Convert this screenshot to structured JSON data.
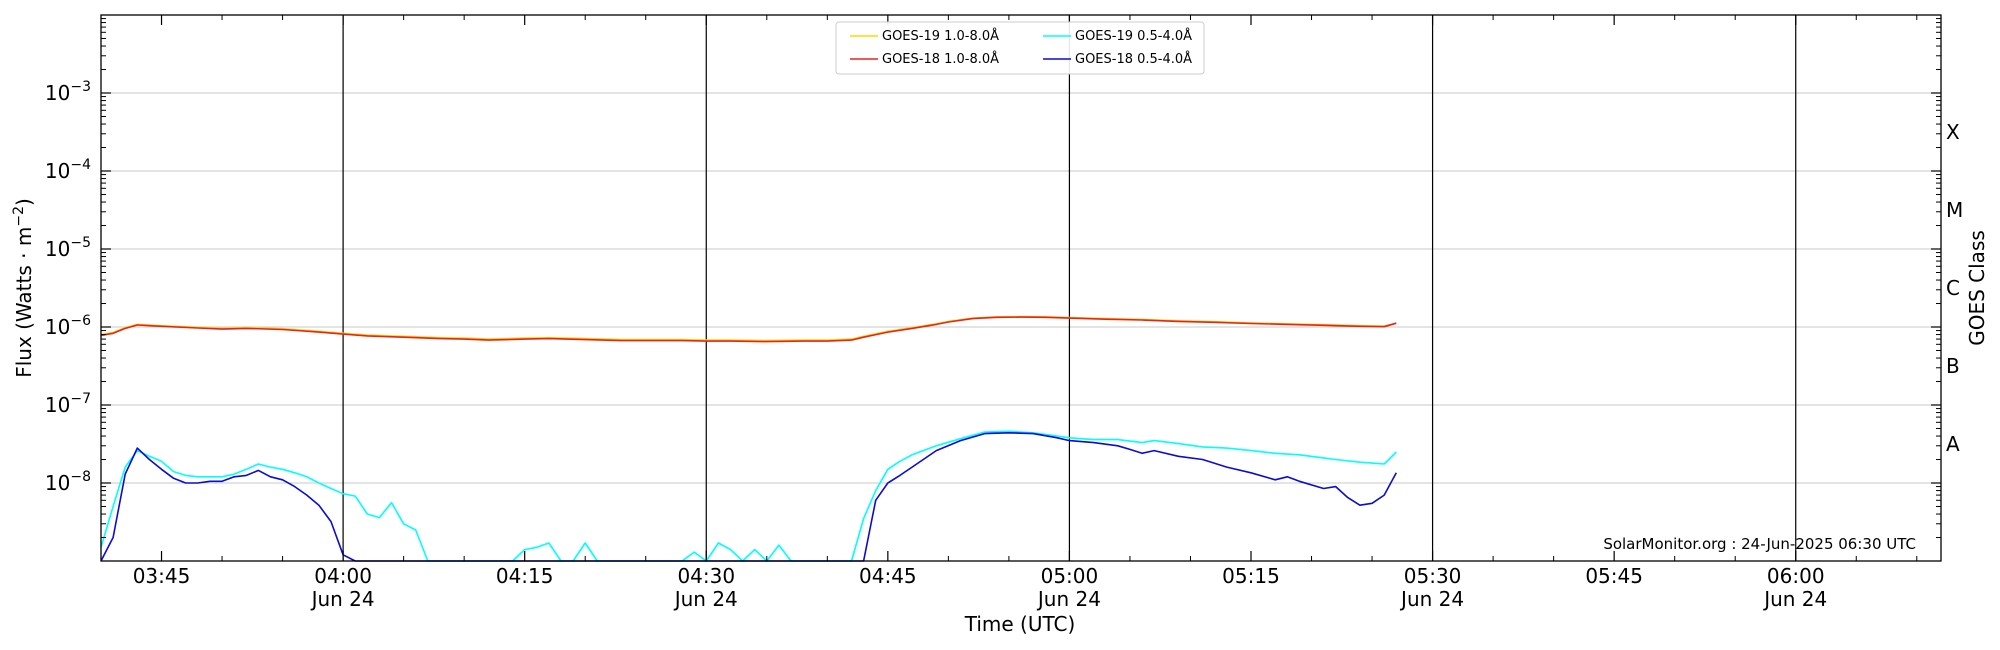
{
  "chart_data": {
    "type": "line",
    "xlabel": "Time (UTC)",
    "ylabel": "Flux (Watts · m",
    "ylabel_sup": "−2",
    "ylabel_end": ")",
    "y2label": "GOES Class",
    "y_scale": "log",
    "ylim": [
      1e-09,
      0.01
    ],
    "xlim": [
      "03:40",
      "06:12"
    ],
    "grid": "horizontal at decades; vertical lines at half-hour marks",
    "legend_position": "top-center",
    "credit": "SolarMonitor.org : 24-Jun-2025 06:30 UTC",
    "y_ticks": [
      {
        "value": 1e-08,
        "base": "10",
        "exp": "−8"
      },
      {
        "value": 1e-07,
        "base": "10",
        "exp": "−7"
      },
      {
        "value": 1e-06,
        "base": "10",
        "exp": "−6"
      },
      {
        "value": 1e-05,
        "base": "10",
        "exp": "−5"
      },
      {
        "value": 0.0001,
        "base": "10",
        "exp": "−4"
      },
      {
        "value": 0.001,
        "base": "10",
        "exp": "−3"
      }
    ],
    "x_ticks": [
      {
        "time": "03:45",
        "label": "03:45",
        "label2": ""
      },
      {
        "time": "04:00",
        "label": "04:00",
        "label2": "Jun 24"
      },
      {
        "time": "04:15",
        "label": "04:15",
        "label2": ""
      },
      {
        "time": "04:30",
        "label": "04:30",
        "label2": "Jun 24"
      },
      {
        "time": "04:45",
        "label": "04:45",
        "label2": ""
      },
      {
        "time": "05:00",
        "label": "05:00",
        "label2": "Jun 24"
      },
      {
        "time": "05:15",
        "label": "05:15",
        "label2": ""
      },
      {
        "time": "05:30",
        "label": "05:30",
        "label2": "Jun 24"
      },
      {
        "time": "05:45",
        "label": "05:45",
        "label2": ""
      },
      {
        "time": "06:00",
        "label": "06:00",
        "label2": "Jun 24"
      }
    ],
    "vlines": [
      "04:00",
      "04:30",
      "05:00",
      "05:30",
      "06:00"
    ],
    "goes_classes": [
      {
        "label": "A",
        "value": 3.16e-08
      },
      {
        "label": "B",
        "value": 3.16e-07
      },
      {
        "label": "C",
        "value": 3.16e-06
      },
      {
        "label": "M",
        "value": 3.16e-05
      },
      {
        "label": "X",
        "value": 0.000316
      }
    ],
    "series": [
      {
        "name": "GOES-19 1.0-8.0Å",
        "color": "#ffd700",
        "x": [
          "03:40",
          "03:41",
          "03:42",
          "03:43",
          "03:45",
          "03:48",
          "03:50",
          "03:52",
          "03:55",
          "03:58",
          "04:00",
          "04:02",
          "04:05",
          "04:08",
          "04:10",
          "04:12",
          "04:15",
          "04:17",
          "04:20",
          "04:23",
          "04:25",
          "04:28",
          "04:30",
          "04:32",
          "04:35",
          "04:38",
          "04:40",
          "04:42",
          "04:43",
          "04:45",
          "04:47",
          "04:49",
          "04:50",
          "04:52",
          "04:54",
          "04:56",
          "04:58",
          "05:00",
          "05:03",
          "05:06",
          "05:09",
          "05:12",
          "05:15",
          "05:18",
          "05:21",
          "05:24",
          "05:26",
          "05:27"
        ],
        "y": [
          8e-07,
          8.5e-07,
          9.8e-07,
          1.08e-06,
          1.04e-06,
          9.9e-07,
          9.6e-07,
          9.8e-07,
          9.5e-07,
          8.8e-07,
          8.3e-07,
          7.9e-07,
          7.6e-07,
          7.3e-07,
          7.2e-07,
          7e-07,
          7.2e-07,
          7.3e-07,
          7.1e-07,
          6.9e-07,
          6.9e-07,
          6.9e-07,
          6.8e-07,
          6.8e-07,
          6.7e-07,
          6.8e-07,
          6.8e-07,
          7e-07,
          7.6e-07,
          8.8e-07,
          9.8e-07,
          1.1e-06,
          1.18e-06,
          1.3e-06,
          1.35e-06,
          1.36e-06,
          1.35e-06,
          1.32e-06,
          1.28e-06,
          1.25e-06,
          1.2e-06,
          1.17e-06,
          1.13e-06,
          1.1e-06,
          1.07e-06,
          1.04e-06,
          1.03e-06,
          1.12e-06
        ]
      },
      {
        "name": "GOES-18 1.0-8.0Å",
        "color": "#e8231d",
        "x": [
          "03:40",
          "03:41",
          "03:42",
          "03:43",
          "03:45",
          "03:48",
          "03:50",
          "03:52",
          "03:55",
          "03:58",
          "04:00",
          "04:02",
          "04:05",
          "04:08",
          "04:10",
          "04:12",
          "04:15",
          "04:17",
          "04:20",
          "04:23",
          "04:25",
          "04:28",
          "04:30",
          "04:32",
          "04:35",
          "04:38",
          "04:40",
          "04:42",
          "04:43",
          "04:45",
          "04:47",
          "04:49",
          "04:50",
          "04:52",
          "04:54",
          "04:56",
          "04:58",
          "05:00",
          "05:03",
          "05:06",
          "05:09",
          "05:12",
          "05:15",
          "05:18",
          "05:21",
          "05:24",
          "05:26",
          "05:27"
        ],
        "y": [
          7.8e-07,
          8.3e-07,
          9.6e-07,
          1.06e-06,
          1.02e-06,
          9.7e-07,
          9.4e-07,
          9.6e-07,
          9.3e-07,
          8.6e-07,
          8.1e-07,
          7.7e-07,
          7.4e-07,
          7.1e-07,
          7e-07,
          6.8e-07,
          7e-07,
          7.1e-07,
          6.9e-07,
          6.7e-07,
          6.7e-07,
          6.7e-07,
          6.6e-07,
          6.6e-07,
          6.5e-07,
          6.6e-07,
          6.6e-07,
          6.8e-07,
          7.4e-07,
          8.6e-07,
          9.6e-07,
          1.08e-06,
          1.16e-06,
          1.28e-06,
          1.33e-06,
          1.34e-06,
          1.33e-06,
          1.3e-06,
          1.26e-06,
          1.23e-06,
          1.18e-06,
          1.15e-06,
          1.11e-06,
          1.08e-06,
          1.05e-06,
          1.02e-06,
          1.01e-06,
          1.12e-06
        ]
      },
      {
        "name": "GOES-19 0.5-4.0Å",
        "color": "#00ffff",
        "x": [
          "03:40",
          "03:41",
          "03:42",
          "03:43",
          "03:44",
          "03:45",
          "03:46",
          "03:47",
          "03:48",
          "03:50",
          "03:51",
          "03:52",
          "03:53",
          "03:54",
          "03:55",
          "03:56",
          "03:57",
          "03:58",
          "03:59",
          "04:00",
          "04:01",
          "04:02",
          "04:03",
          "04:04",
          "04:05",
          "04:06",
          "04:07",
          "04:08",
          "04:14",
          "04:15",
          "04:16",
          "04:17",
          "04:18",
          "04:19",
          "04:20",
          "04:21",
          "04:28",
          "04:29",
          "04:30",
          "04:31",
          "04:32",
          "04:33",
          "04:34",
          "04:35",
          "04:36",
          "04:37",
          "04:38",
          "04:42",
          "04:43",
          "04:44",
          "04:45",
          "04:46",
          "04:47",
          "04:49",
          "04:51",
          "04:53",
          "04:55",
          "04:57",
          "04:59",
          "05:00",
          "05:02",
          "05:04",
          "05:06",
          "05:07",
          "05:09",
          "05:11",
          "05:13",
          "05:15",
          "05:17",
          "05:19",
          "05:21",
          "05:22",
          "05:24",
          "05:25",
          "05:26",
          "05:27"
        ],
        "y": [
          1.5e-09,
          5e-09,
          1.6e-08,
          2.6e-08,
          2.2e-08,
          1.9e-08,
          1.4e-08,
          1.25e-08,
          1.2e-08,
          1.2e-08,
          1.3e-08,
          1.5e-08,
          1.75e-08,
          1.6e-08,
          1.5e-08,
          1.35e-08,
          1.2e-08,
          1e-08,
          8.5e-09,
          7.3e-09,
          6.8e-09,
          4e-09,
          3.6e-09,
          5.6e-09,
          3e-09,
          2.5e-09,
          1e-09,
          1e-09,
          1e-09,
          1.4e-09,
          1.5e-09,
          1.7e-09,
          1e-09,
          1e-09,
          1.7e-09,
          1e-09,
          1e-09,
          1.3e-09,
          1e-09,
          1.7e-09,
          1.4e-09,
          1e-09,
          1.4e-09,
          1e-09,
          1.6e-09,
          1e-09,
          1e-09,
          1e-09,
          3.5e-09,
          8e-09,
          1.5e-08,
          1.9e-08,
          2.3e-08,
          3e-08,
          3.7e-08,
          4.5e-08,
          4.6e-08,
          4.4e-08,
          4e-08,
          3.8e-08,
          3.6e-08,
          3.6e-08,
          3.3e-08,
          3.5e-08,
          3.2e-08,
          2.9e-08,
          2.8e-08,
          2.6e-08,
          2.4e-08,
          2.3e-08,
          2.1e-08,
          2e-08,
          1.85e-08,
          1.8e-08,
          1.75e-08,
          2.5e-08
        ]
      },
      {
        "name": "GOES-18 0.5-4.0Å",
        "color": "#0b0bd6",
        "x": [
          "03:40",
          "03:41",
          "03:42",
          "03:43",
          "03:44",
          "03:45",
          "03:46",
          "03:47",
          "03:48",
          "03:49",
          "03:50",
          "03:51",
          "03:52",
          "03:53",
          "03:54",
          "03:55",
          "03:56",
          "03:57",
          "03:58",
          "03:59",
          "04:00",
          "04:01",
          "04:43",
          "04:44",
          "04:45",
          "04:46",
          "04:47",
          "04:49",
          "04:51",
          "04:53",
          "04:55",
          "04:57",
          "04:59",
          "05:00",
          "05:02",
          "05:04",
          "05:05",
          "05:06",
          "05:07",
          "05:09",
          "05:11",
          "05:13",
          "05:15",
          "05:17",
          "05:18",
          "05:19",
          "05:21",
          "05:22",
          "05:23",
          "05:24",
          "05:25",
          "05:26",
          "05:27"
        ],
        "y": [
          1e-09,
          2e-09,
          1.3e-08,
          2.8e-08,
          2e-08,
          1.5e-08,
          1.15e-08,
          1e-08,
          1e-08,
          1.05e-08,
          1.05e-08,
          1.2e-08,
          1.25e-08,
          1.45e-08,
          1.2e-08,
          1.1e-08,
          9e-09,
          7e-09,
          5.2e-09,
          3.2e-09,
          1.2e-09,
          1e-09,
          1e-09,
          6e-09,
          1e-08,
          1.25e-08,
          1.6e-08,
          2.6e-08,
          3.5e-08,
          4.3e-08,
          4.4e-08,
          4.3e-08,
          3.8e-08,
          3.5e-08,
          3.3e-08,
          3e-08,
          2.7e-08,
          2.4e-08,
          2.6e-08,
          2.2e-08,
          2e-08,
          1.6e-08,
          1.35e-08,
          1.1e-08,
          1.2e-08,
          1.05e-08,
          8.5e-09,
          9e-09,
          6.5e-09,
          5.2e-09,
          5.5e-09,
          7e-09,
          1.35e-08
        ]
      }
    ]
  }
}
